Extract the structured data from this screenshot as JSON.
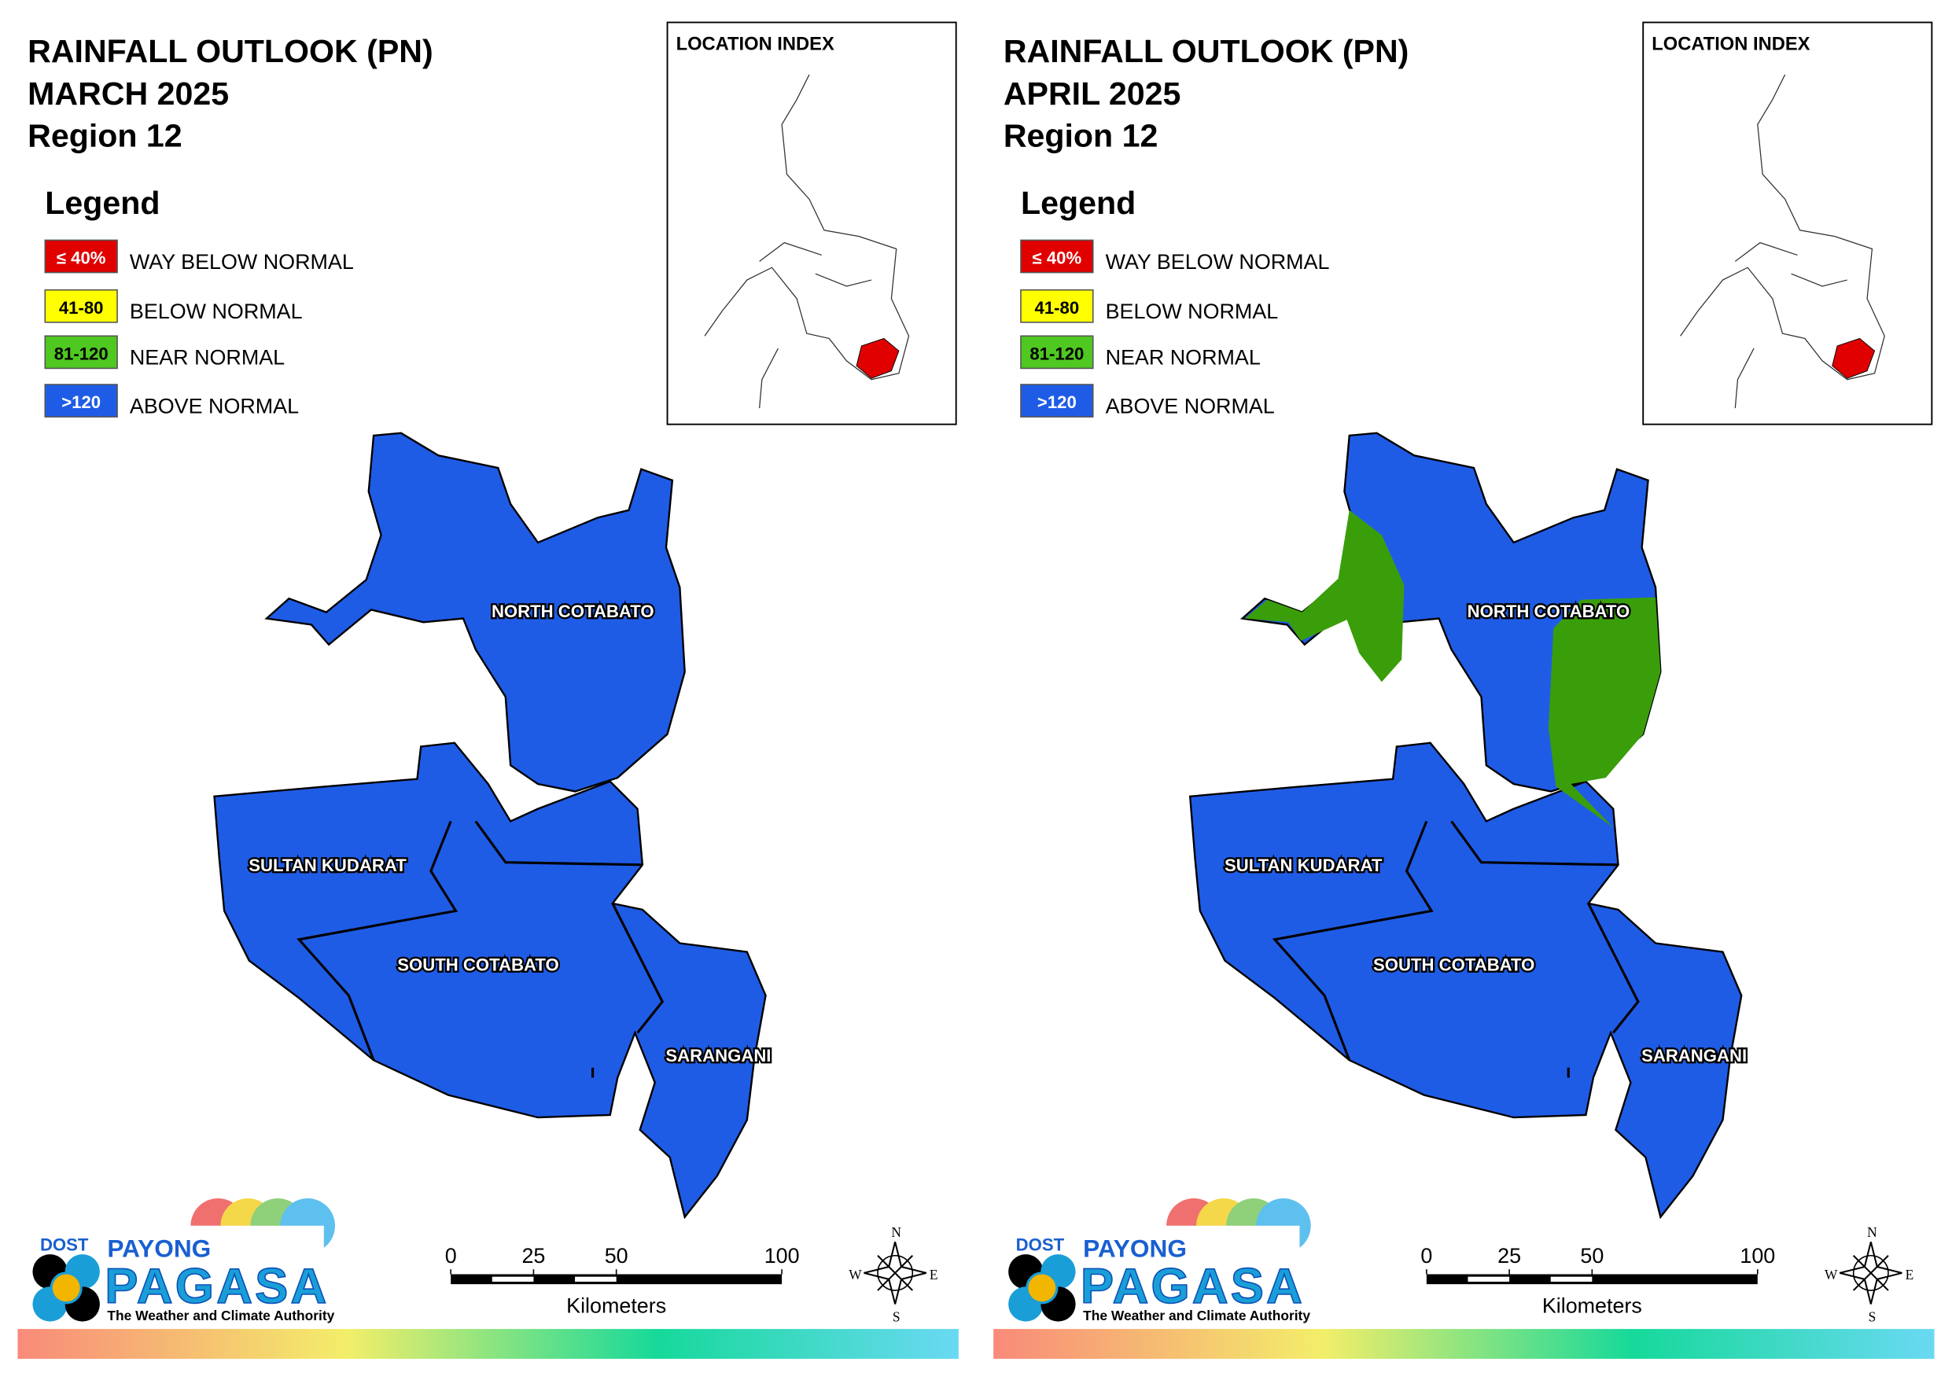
{
  "panels": [
    {
      "title": [
        "RAINFALL OUTLOOK (PN)",
        "MARCH 2025",
        "Region 12"
      ],
      "legend_title": "Legend",
      "legend": [
        {
          "swatch": "≤ 40%",
          "label": "WAY BELOW NORMAL",
          "color": "#e00000"
        },
        {
          "swatch": "41-80",
          "label": "BELOW NORMAL",
          "color": "#ffff00"
        },
        {
          "swatch": "81-120",
          "label": "NEAR NORMAL",
          "color": "#4fc821"
        },
        {
          "swatch": ">120",
          "label": "ABOVE NORMAL",
          "color": "#1f5ce6"
        }
      ],
      "location_index": "LOCATION INDEX",
      "provinces": [
        "NORTH COTABATO",
        "SULTAN KUDARAT",
        "SOUTH COTABATO",
        "SARANGANI"
      ],
      "scale": {
        "ticks": [
          0,
          25,
          50,
          100
        ],
        "unit": "Kilometers"
      },
      "compass": [
        "N",
        "E",
        "S",
        "W"
      ]
    },
    {
      "title": [
        "RAINFALL OUTLOOK (PN)",
        "APRIL 2025",
        "Region 12"
      ],
      "legend_title": "Legend",
      "legend": [
        {
          "swatch": "≤ 40%",
          "label": "WAY BELOW NORMAL",
          "color": "#e00000"
        },
        {
          "swatch": "41-80",
          "label": "BELOW NORMAL",
          "color": "#ffff00"
        },
        {
          "swatch": "81-120",
          "label": "NEAR NORMAL",
          "color": "#4fc821"
        },
        {
          "swatch": ">120",
          "label": "ABOVE NORMAL",
          "color": "#1f5ce6"
        }
      ],
      "location_index": "LOCATION INDEX",
      "provinces": [
        "NORTH COTABATO",
        "SULTAN KUDARAT",
        "SOUTH COTABATO",
        "SARANGANI"
      ],
      "scale": {
        "ticks": [
          0,
          25,
          50,
          100
        ],
        "unit": "Kilometers"
      },
      "compass": [
        "N",
        "E",
        "S",
        "W"
      ]
    }
  ],
  "logo": {
    "dost": "DOST",
    "payong": "PAYONG",
    "pagasa": "PAGASA",
    "tagline": "The Weather and Climate Authority"
  }
}
